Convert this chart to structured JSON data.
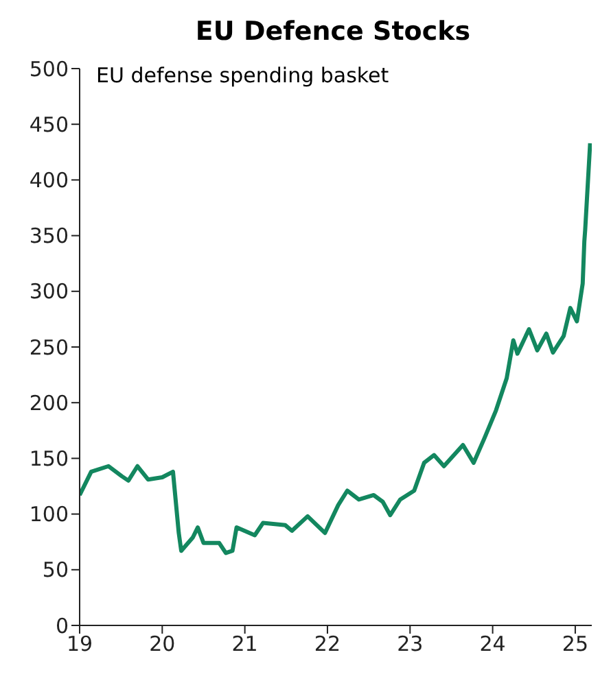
{
  "chart_data": {
    "type": "line",
    "title": "EU Defence Stocks",
    "subtitle": "EU defense spending basket",
    "x": [
      19,
      19.14,
      19.35,
      19.51,
      19.59,
      19.7,
      19.83,
      20,
      20.13,
      20.2,
      20.23,
      20.37,
      20.43,
      20.5,
      20.69,
      20.77,
      20.85,
      20.9,
      21.12,
      21.22,
      21.49,
      21.57,
      21.76,
      21.97,
      22.13,
      22.24,
      22.38,
      22.56,
      22.67,
      22.76,
      22.88,
      23.05,
      23.17,
      23.29,
      23.41,
      23.64,
      23.77,
      23.9,
      24.04,
      24.17,
      24.25,
      24.3,
      24.44,
      24.54,
      24.65,
      24.73,
      24.86,
      24.94,
      25.02,
      25.09,
      25.11,
      25.12,
      25.18
    ],
    "series": [
      {
        "color": "#13875f",
        "values": [
          117,
          138,
          143,
          134,
          130,
          143,
          131,
          133,
          138,
          83,
          67,
          79,
          88,
          74,
          74,
          65,
          67,
          88,
          81,
          92,
          90,
          85,
          98,
          83,
          108,
          121,
          113,
          117,
          111,
          99,
          113,
          121,
          146,
          153,
          143,
          162,
          146,
          168,
          193,
          222,
          256,
          244,
          266,
          247,
          262,
          245,
          260,
          285,
          273,
          307,
          345,
          355,
          433
        ]
      }
    ],
    "xlim": [
      19,
      25.2
    ],
    "xticks": [
      19,
      20,
      21,
      22,
      23,
      24,
      25
    ],
    "ylim": [
      0,
      500
    ],
    "yticks": [
      0,
      50,
      100,
      150,
      200,
      250,
      300,
      350,
      400,
      450,
      500
    ],
    "grid": false,
    "legend": false,
    "marker": "none",
    "line_style": "solid"
  }
}
